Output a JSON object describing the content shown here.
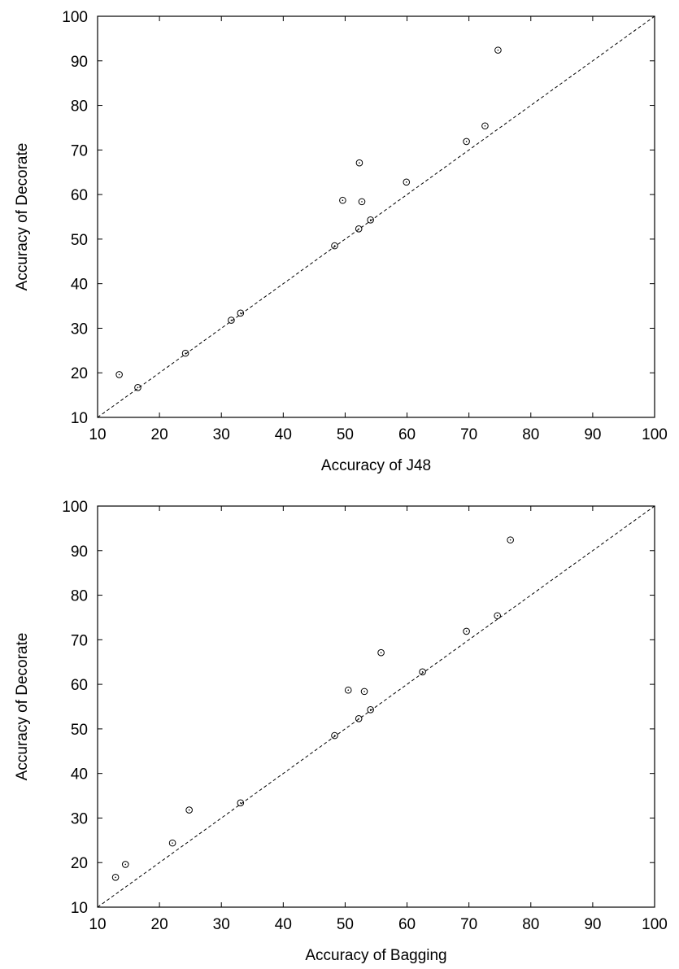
{
  "chart_data": [
    {
      "type": "scatter",
      "xlabel": "Accuracy of J48",
      "ylabel": "Accuracy of Decorate",
      "xlim": [
        10,
        100
      ],
      "ylim": [
        10,
        100
      ],
      "xticks": [
        10,
        20,
        30,
        40,
        50,
        60,
        70,
        80,
        90,
        100
      ],
      "yticks": [
        10,
        20,
        30,
        40,
        50,
        60,
        70,
        80,
        90,
        100
      ],
      "reference_line": "y = x (dashed)",
      "grid": false,
      "points": [
        {
          "x": 13.5,
          "y": 19.6
        },
        {
          "x": 16.5,
          "y": 16.7
        },
        {
          "x": 24.2,
          "y": 24.4
        },
        {
          "x": 31.6,
          "y": 31.8
        },
        {
          "x": 33.1,
          "y": 33.4
        },
        {
          "x": 48.3,
          "y": 48.5
        },
        {
          "x": 49.6,
          "y": 58.7
        },
        {
          "x": 52.2,
          "y": 52.3
        },
        {
          "x": 52.3,
          "y": 67.1
        },
        {
          "x": 52.7,
          "y": 58.4
        },
        {
          "x": 54.1,
          "y": 54.3
        },
        {
          "x": 59.9,
          "y": 62.8
        },
        {
          "x": 69.6,
          "y": 71.9
        },
        {
          "x": 72.6,
          "y": 75.4
        },
        {
          "x": 74.7,
          "y": 92.4
        }
      ]
    },
    {
      "type": "scatter",
      "xlabel": "Accuracy of Bagging",
      "ylabel": "Accuracy of Decorate",
      "xlim": [
        10,
        100
      ],
      "ylim": [
        10,
        100
      ],
      "xticks": [
        10,
        20,
        30,
        40,
        50,
        60,
        70,
        80,
        90,
        100
      ],
      "yticks": [
        10,
        20,
        30,
        40,
        50,
        60,
        70,
        80,
        90,
        100
      ],
      "reference_line": "y = x (dashed)",
      "grid": false,
      "points": [
        {
          "x": 12.9,
          "y": 16.7
        },
        {
          "x": 14.5,
          "y": 19.6
        },
        {
          "x": 22.1,
          "y": 24.4
        },
        {
          "x": 24.8,
          "y": 31.8
        },
        {
          "x": 33.1,
          "y": 33.4
        },
        {
          "x": 48.3,
          "y": 48.5
        },
        {
          "x": 50.5,
          "y": 58.7
        },
        {
          "x": 52.2,
          "y": 52.3
        },
        {
          "x": 53.1,
          "y": 58.4
        },
        {
          "x": 54.1,
          "y": 54.3
        },
        {
          "x": 55.8,
          "y": 67.1
        },
        {
          "x": 62.5,
          "y": 62.8
        },
        {
          "x": 69.6,
          "y": 71.9
        },
        {
          "x": 74.6,
          "y": 75.4
        },
        {
          "x": 76.7,
          "y": 92.4
        }
      ]
    }
  ]
}
